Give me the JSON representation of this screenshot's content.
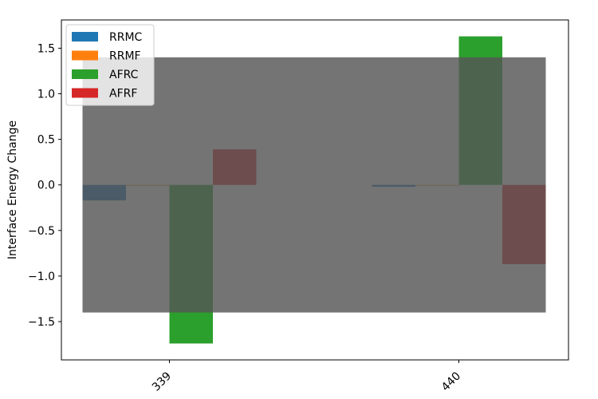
{
  "chart_data": {
    "type": "bar",
    "categories": [
      "339",
      "440"
    ],
    "series": [
      {
        "name": "RRMC",
        "color": "#1f77b4",
        "values": [
          -0.17,
          -0.02
        ]
      },
      {
        "name": "RRMF",
        "color": "#ff7f0e",
        "values": [
          -0.005,
          0.0
        ]
      },
      {
        "name": "AFRC",
        "color": "#2ca02c",
        "values": [
          -1.74,
          1.63
        ]
      },
      {
        "name": "AFRF",
        "color": "#d62728",
        "values": [
          0.39,
          -0.87
        ]
      }
    ],
    "ylabel": "Interface Energy Change",
    "xlabel": "",
    "ylim": [
      -1.92,
      1.81
    ],
    "yticks": [
      -1.5,
      -1.0,
      -0.5,
      0.0,
      0.5,
      1.0,
      1.5
    ],
    "ytick_labels": [
      "−1.5",
      "−1.0",
      "−0.5",
      "0.0",
      "0.5",
      "1.0",
      "1.5"
    ],
    "overlay_band": {
      "y_range": [
        -1.4,
        1.4
      ],
      "color": "#555555"
    },
    "legend_position": "top-left",
    "grid": false
  }
}
